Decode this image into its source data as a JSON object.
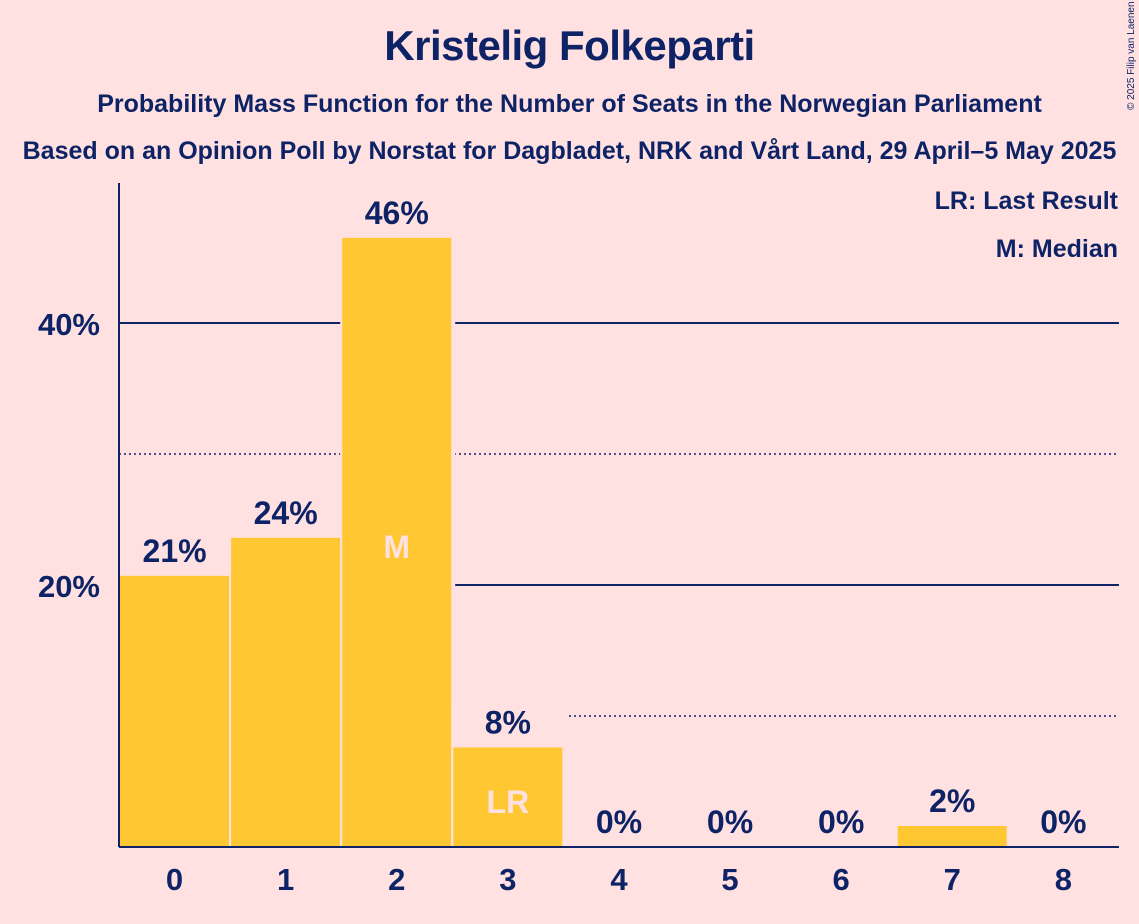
{
  "chart_data": {
    "type": "bar",
    "title": "Kristelig Folkeparti",
    "subtitle": "Probability Mass Function for the Number of Seats in the Norwegian Parliament",
    "subtitle2": "Based on an Opinion Poll by Norstat for Dagbladet, NRK and Vårt Land, 29 April–5 May 2025",
    "copyright": "© 2025 Filip van Laenen",
    "categories": [
      "0",
      "1",
      "2",
      "3",
      "4",
      "5",
      "6",
      "7",
      "8"
    ],
    "values": [
      20.7,
      23.6,
      46.5,
      7.6,
      0,
      0,
      0,
      1.6,
      0
    ],
    "value_labels": [
      "21%",
      "24%",
      "46%",
      "8%",
      "0%",
      "0%",
      "0%",
      "2%",
      "0%"
    ],
    "inner_labels": [
      "",
      "",
      "M",
      "LR",
      "",
      "",
      "",
      "",
      ""
    ],
    "ylim": [
      0,
      50
    ],
    "ytick_labels": [
      {
        "value": 20,
        "label": "20%"
      },
      {
        "value": 40,
        "label": "40%"
      }
    ],
    "dotted_gridlines": [
      10,
      30
    ],
    "solid_gridlines": [
      20,
      40
    ],
    "legend": [
      "LR: Last Result",
      "M: Median"
    ],
    "legend_position": "top-right",
    "colors": {
      "background": "#ffe1e1",
      "bar": "#ffc832",
      "text": "#0d2366"
    }
  }
}
